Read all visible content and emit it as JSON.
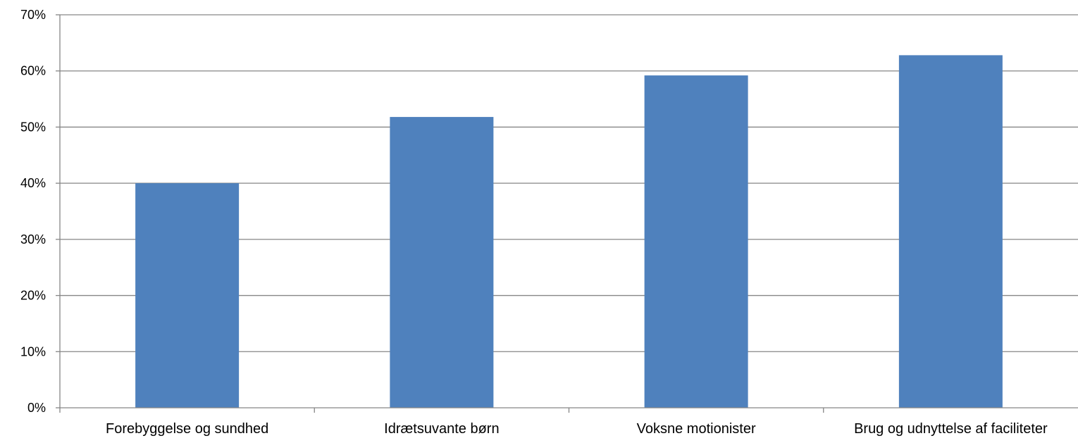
{
  "chart_data": {
    "type": "bar",
    "categories": [
      "Forebyggelse og sundhed",
      "Idrætsuvante børn",
      "Voksne motionister",
      "Brug og udnyttelse af faciliteter"
    ],
    "values": [
      40,
      51.8,
      59.2,
      62.8
    ],
    "value_unit": "%",
    "ylim": [
      0,
      70
    ],
    "yticks": [
      "0%",
      "10%",
      "20%",
      "30%",
      "40%",
      "50%",
      "60%",
      "70%"
    ],
    "title": "",
    "xlabel": "",
    "ylabel": "",
    "grid": true,
    "legend": "none",
    "bar_color": "#4f81bd",
    "grid_color": "#868686"
  }
}
